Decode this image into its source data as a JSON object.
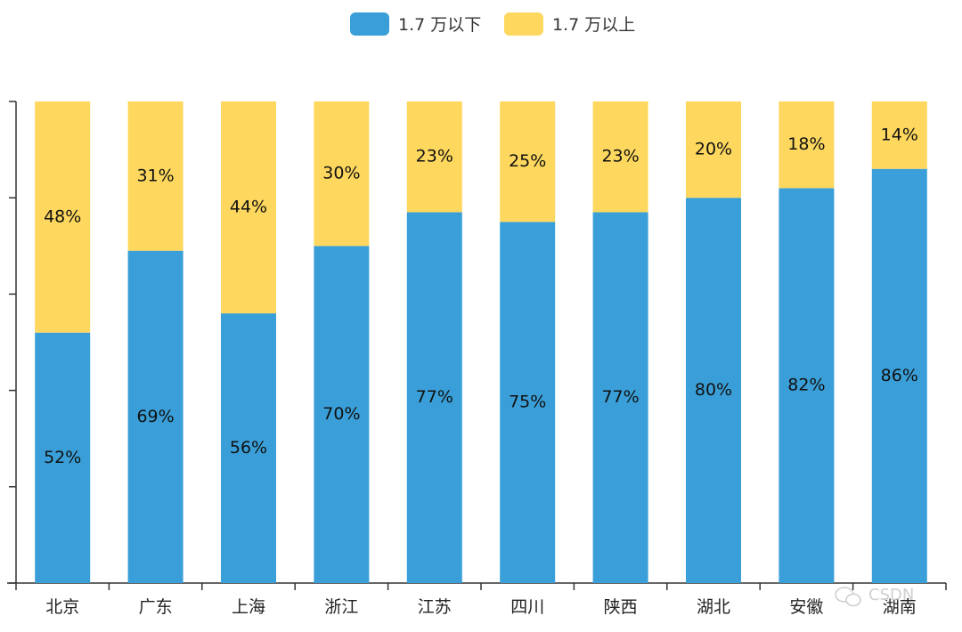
{
  "chart_data": {
    "type": "bar",
    "stacked": true,
    "categories": [
      "北京",
      "广东",
      "上海",
      "浙江",
      "江苏",
      "四川",
      "陕西",
      "湖北",
      "安徽",
      "湖南"
    ],
    "series": [
      {
        "name": "1.7 万以下",
        "color": "#3a9fd8",
        "values": [
          52,
          69,
          56,
          70,
          77,
          75,
          77,
          80,
          82,
          86
        ],
        "labels": [
          "52%",
          "69%",
          "56%",
          "70%",
          "77%",
          "75%",
          "77%",
          "80%",
          "82%",
          "86%"
        ]
      },
      {
        "name": "1.7 万以上",
        "color": "#fdd75e",
        "values": [
          48,
          31,
          44,
          30,
          23,
          25,
          23,
          20,
          18,
          14
        ],
        "labels": [
          "48%",
          "31%",
          "44%",
          "30%",
          "23%",
          "25%",
          "23%",
          "20%",
          "18%",
          "14%"
        ]
      }
    ],
    "ylim": [
      0,
      100
    ],
    "legend_position": "top-center",
    "grid": false
  },
  "watermark": {
    "text": "CSDN",
    "icon": "wechat-icon"
  }
}
